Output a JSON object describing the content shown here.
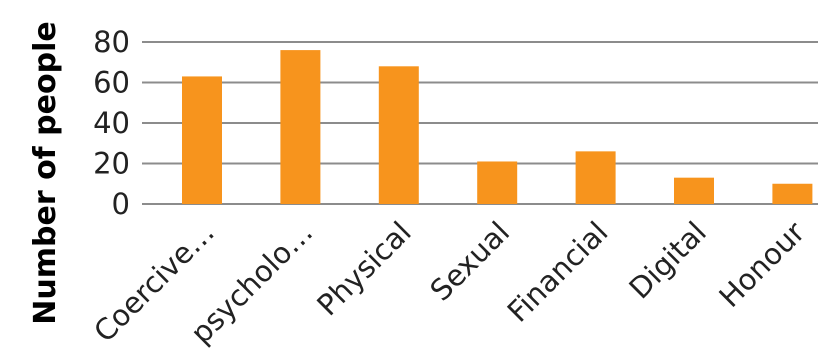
{
  "chart_data": {
    "type": "bar",
    "title": "",
    "xlabel": "",
    "ylabel": "Number of people",
    "ylim": [
      0,
      80
    ],
    "yticks": [
      0,
      20,
      40,
      60,
      80
    ],
    "grid": true,
    "categories": [
      "Coercive…",
      "psycholo…",
      "Physical",
      "Sexual",
      "Financial",
      "Digital",
      "Honour"
    ],
    "values": [
      63,
      76,
      68,
      21,
      26,
      13,
      10
    ],
    "colors": {
      "bar": "#F7941D",
      "grid": "#8C8C8C",
      "axis": "#8C8C8C"
    }
  }
}
